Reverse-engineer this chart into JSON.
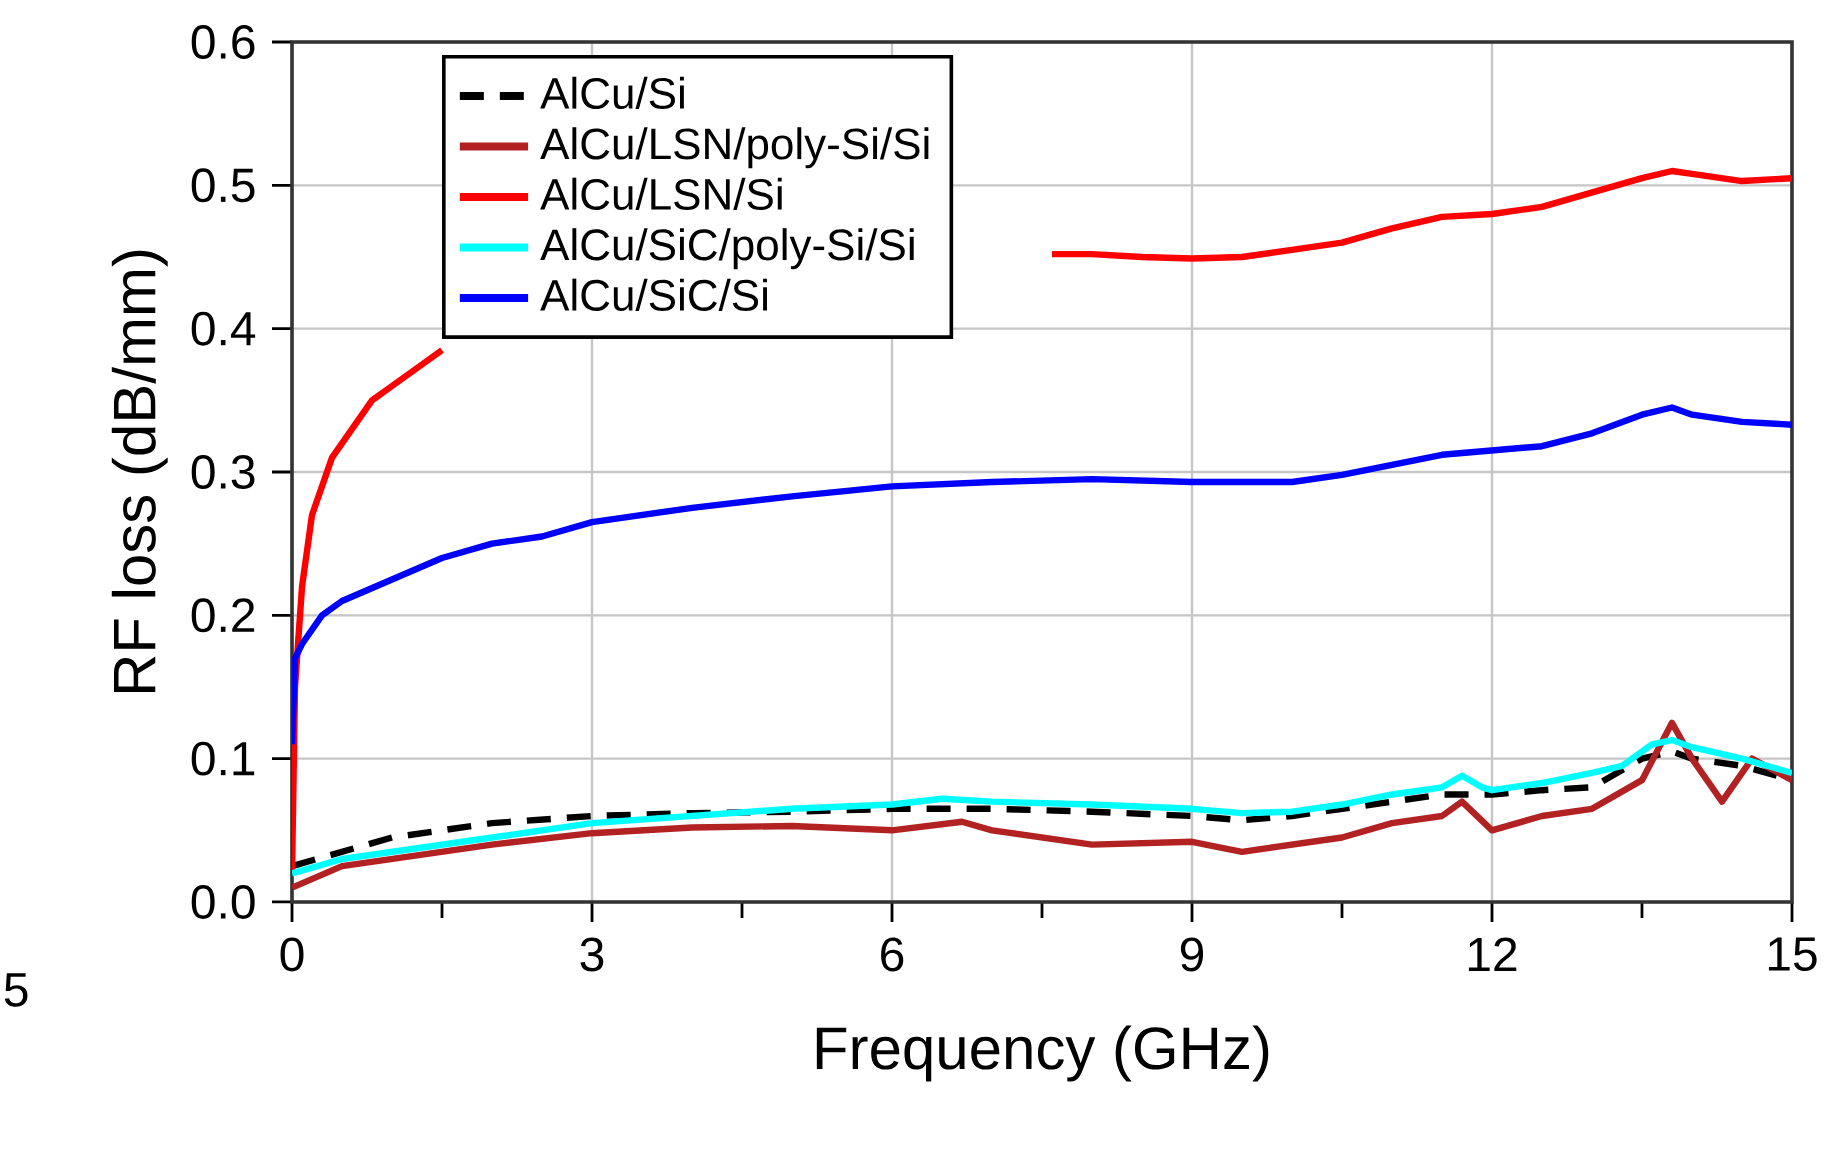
{
  "chart_data": {
    "type": "line",
    "xlabel": "Frequency (GHz)",
    "ylabel": "RF loss (dB/mm)",
    "xlim": [
      0,
      15
    ],
    "ylim": [
      0,
      0.6
    ],
    "xticks": [
      0,
      3,
      6,
      9,
      12,
      15
    ],
    "yticks": [
      {
        "value": 0,
        "label": "0.0"
      },
      0.1,
      0.2,
      0.3,
      0.4,
      0.5,
      0.6
    ],
    "grid": true,
    "legend": "top",
    "marker": "none",
    "annotations": [
      "5"
    ],
    "series": [
      {
        "name": "AlCu/Si",
        "color": "#000000",
        "line_style": "dashed",
        "x": [
          0,
          0.5,
          1,
          2,
          3,
          4,
          5,
          6,
          7,
          8,
          9,
          9.5,
          10,
          10.5,
          11,
          11.5,
          12,
          12.5,
          13,
          13.5,
          13.8,
          14,
          14.5,
          15
        ],
        "values": [
          0.025,
          0.035,
          0.045,
          0.055,
          0.06,
          0.062,
          0.063,
          0.065,
          0.065,
          0.063,
          0.06,
          0.057,
          0.06,
          0.065,
          0.07,
          0.075,
          0.075,
          0.078,
          0.08,
          0.1,
          0.105,
          0.1,
          0.095,
          0.085
        ]
      },
      {
        "name": "AlCu/LSN/poly-Si/Si",
        "color": "#b22222",
        "line_style": "solid",
        "x": [
          0,
          0.5,
          1,
          2,
          3,
          4,
          5,
          6,
          6.7,
          7,
          8,
          9,
          9.5,
          10,
          10.5,
          11,
          11.5,
          11.7,
          12,
          12.5,
          13,
          13.5,
          13.8,
          14,
          14.3,
          14.6,
          15
        ],
        "values": [
          0.01,
          0.025,
          0.03,
          0.04,
          0.048,
          0.052,
          0.053,
          0.05,
          0.056,
          0.05,
          0.04,
          0.042,
          0.035,
          0.04,
          0.045,
          0.055,
          0.06,
          0.07,
          0.05,
          0.06,
          0.065,
          0.085,
          0.125,
          0.1,
          0.07,
          0.1,
          0.085
        ]
      },
      {
        "name": "AlCu/LSN/Si",
        "color": "#ff0000",
        "line_style": "solid",
        "x": [
          0,
          0.03,
          0.1,
          0.2,
          0.4,
          0.6,
          0.8,
          1.0,
          1.3,
          1.5,
          4,
          7.6,
          8,
          8.5,
          9,
          9.5,
          10,
          10.5,
          11,
          11.5,
          12,
          12.5,
          13,
          13.5,
          13.8,
          14,
          14.5,
          15
        ],
        "values": [
          0.02,
          0.15,
          0.22,
          0.27,
          0.31,
          0.33,
          0.35,
          0.36,
          0.375,
          0.385,
          null,
          0.452,
          0.452,
          0.45,
          0.449,
          0.45,
          0.455,
          0.46,
          0.47,
          0.478,
          0.48,
          0.485,
          0.495,
          0.505,
          0.51,
          0.508,
          0.503,
          0.505
        ]
      },
      {
        "name": "AlCu/SiC/poly-Si/Si",
        "color": "#00ffff",
        "line_style": "solid",
        "x": [
          0,
          0.5,
          1,
          2,
          3,
          4,
          5,
          6,
          6.5,
          7,
          8,
          9,
          9.5,
          10,
          10.5,
          11,
          11.5,
          11.7,
          11.9,
          12,
          12.5,
          13,
          13.3,
          13.6,
          13.8,
          14,
          14.5,
          15
        ],
        "values": [
          0.02,
          0.03,
          0.035,
          0.045,
          0.055,
          0.06,
          0.065,
          0.068,
          0.072,
          0.07,
          0.068,
          0.065,
          0.062,
          0.063,
          0.068,
          0.075,
          0.08,
          0.088,
          0.08,
          0.078,
          0.083,
          0.09,
          0.095,
          0.11,
          0.113,
          0.108,
          0.1,
          0.09
        ]
      },
      {
        "name": "AlCu/SiC/Si",
        "color": "#0000ff",
        "line_style": "solid",
        "x": [
          0,
          0.03,
          0.1,
          0.3,
          0.5,
          1,
          1.5,
          2,
          2.5,
          3,
          4,
          5,
          6,
          7,
          8,
          9,
          10,
          10.5,
          11,
          11.5,
          12,
          12.5,
          13,
          13.5,
          13.8,
          14,
          14.5,
          15
        ],
        "values": [
          0.11,
          0.17,
          0.18,
          0.2,
          0.21,
          0.225,
          0.24,
          0.25,
          0.255,
          0.265,
          0.275,
          0.283,
          0.29,
          0.293,
          0.295,
          0.293,
          0.293,
          0.298,
          0.305,
          0.312,
          0.315,
          0.318,
          0.327,
          0.34,
          0.345,
          0.34,
          0.335,
          0.333
        ]
      }
    ]
  }
}
